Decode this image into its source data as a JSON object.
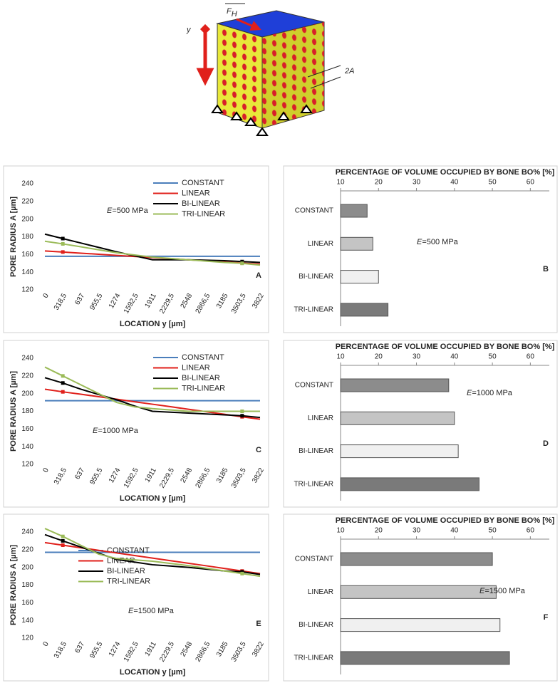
{
  "diagram": {
    "axis_label": "y",
    "force": {
      "symbol": "F",
      "subscript": "H"
    },
    "dimension": "2A"
  },
  "chart_data": [
    {
      "type": "line",
      "panel": "A",
      "annotation": {
        "symbol": "E",
        "text": "=500 MPa"
      },
      "xlabel": "LOCATION y [µm]",
      "ylabel": "PORE RADIUS A [µm]",
      "categories": [
        "0",
        "318,5",
        "637",
        "955,5",
        "1274",
        "1592,5",
        "1911",
        "2229,5",
        "2548",
        "2866,5",
        "3185",
        "3503,5",
        "3822"
      ],
      "ylim": [
        120,
        240
      ],
      "yticks": [
        120,
        140,
        160,
        180,
        200,
        220,
        240
      ],
      "legend": "upper right",
      "series": [
        {
          "name": "CONSTANT",
          "color": "#4a7ebb",
          "values": [
            158,
            158,
            158,
            158,
            158,
            158,
            158,
            158,
            158,
            158,
            158,
            158,
            158
          ]
        },
        {
          "name": "LINEAR",
          "color": "#e0201b",
          "values": [
            164,
            162.8,
            161.5,
            160.3,
            159,
            157.8,
            156.5,
            155.3,
            154,
            152.8,
            151.5,
            150.3,
            149
          ]
        },
        {
          "name": "BI-LINEAR",
          "color": "#000000",
          "values": [
            183,
            178,
            173,
            168,
            163,
            158.5,
            154,
            154,
            154,
            153.5,
            153,
            152,
            151
          ]
        },
        {
          "name": "TRI-LINEAR",
          "color": "#9bbb59",
          "values": [
            175,
            172,
            168.7,
            165.3,
            162,
            159.5,
            157,
            155.5,
            154,
            152.5,
            151,
            150,
            148
          ]
        }
      ]
    },
    {
      "type": "hbar",
      "panel": "B",
      "annotation": {
        "symbol": "E",
        "text": "=500 MPa"
      },
      "title": "PERCENTAGE OF VOLUME OCCUPIED BY BONE BO% [%]",
      "categories": [
        "CONSTANT",
        "LINEAR",
        "BI-LINEAR",
        "TRI-LINEAR"
      ],
      "values": [
        17,
        18.5,
        20,
        22.5
      ],
      "colors": [
        "#8c8c8c",
        "#c4c4c4",
        "#f0f0f0",
        "#7a7a7a"
      ],
      "xlim": [
        10,
        65
      ],
      "xticks": [
        10,
        20,
        30,
        40,
        50,
        60
      ]
    },
    {
      "type": "line",
      "panel": "C",
      "annotation": {
        "symbol": "E",
        "text": "=1000 MPa"
      },
      "xlabel": "LOCATION y [µm]",
      "ylabel": "PORE RADIUS A [µm]",
      "categories": [
        "0",
        "318,5",
        "637",
        "955,5",
        "1274",
        "1592,5",
        "1911",
        "2229,5",
        "2548",
        "2866,5",
        "3185",
        "3503,5",
        "3822"
      ],
      "ylim": [
        120,
        240
      ],
      "yticks": [
        120,
        140,
        160,
        180,
        200,
        220,
        240
      ],
      "legend": "upper right",
      "series": [
        {
          "name": "CONSTANT",
          "color": "#4a7ebb",
          "values": [
            192,
            192,
            192,
            192,
            192,
            192,
            192,
            192,
            192,
            192,
            192,
            192,
            192
          ]
        },
        {
          "name": "LINEAR",
          "color": "#e0201b",
          "values": [
            205,
            202,
            199.3,
            196.5,
            193.7,
            190.8,
            188,
            185.2,
            182.3,
            179.5,
            176.7,
            173.8,
            171
          ]
        },
        {
          "name": "BI-LINEAR",
          "color": "#000000",
          "values": [
            218,
            212,
            205,
            199,
            193,
            186,
            180,
            179,
            178,
            177,
            176,
            175,
            173
          ]
        },
        {
          "name": "TRI-LINEAR",
          "color": "#9bbb59",
          "values": [
            230,
            220,
            210,
            200,
            190,
            185,
            183,
            181.5,
            180,
            180,
            180,
            180,
            180
          ]
        }
      ]
    },
    {
      "type": "hbar",
      "panel": "D",
      "annotation": {
        "symbol": "E",
        "text": "=1000 MPa"
      },
      "title": "PERCENTAGE OF VOLUME OCCUPIED BY BONE BO% [%]",
      "categories": [
        "CONSTANT",
        "LINEAR",
        "BI-LINEAR",
        "TRI-LINEAR"
      ],
      "values": [
        38.5,
        40,
        41,
        46.5
      ],
      "colors": [
        "#8c8c8c",
        "#c4c4c4",
        "#f0f0f0",
        "#7a7a7a"
      ],
      "xlim": [
        10,
        65
      ],
      "xticks": [
        10,
        20,
        30,
        40,
        50,
        60
      ]
    },
    {
      "type": "line",
      "panel": "E",
      "annotation": {
        "symbol": "E",
        "text": "=1500 MPa"
      },
      "xlabel": "LOCATION y [µm]",
      "ylabel": "PORE RADIUS A [µm]",
      "categories": [
        "0",
        "318,5",
        "637",
        "955,5",
        "1274",
        "1592,5",
        "1911",
        "2229,5",
        "2548",
        "2866,5",
        "3185",
        "3503,5",
        "3822"
      ],
      "ylim": [
        120,
        240
      ],
      "yticks": [
        120,
        140,
        160,
        180,
        200,
        220,
        240
      ],
      "legend": "lower left",
      "series": [
        {
          "name": "CONSTANT",
          "color": "#4a7ebb",
          "values": [
            217,
            217,
            217,
            217,
            217,
            217,
            217,
            217,
            217,
            217,
            217,
            217,
            217
          ]
        },
        {
          "name": "LINEAR",
          "color": "#e0201b",
          "values": [
            228,
            225.1,
            222.2,
            219.3,
            216.3,
            213.4,
            210.5,
            207.6,
            204.7,
            201.8,
            198.8,
            195.9,
            193
          ]
        },
        {
          "name": "BI-LINEAR",
          "color": "#000000",
          "values": [
            237,
            230,
            223,
            216,
            209,
            206,
            203,
            201.5,
            200,
            198,
            196,
            195,
            192
          ]
        },
        {
          "name": "TRI-LINEAR",
          "color": "#9bbb59",
          "values": [
            244,
            235,
            225,
            215,
            210,
            208.5,
            207,
            204.5,
            202,
            199,
            196,
            193,
            190
          ]
        }
      ]
    },
    {
      "type": "hbar",
      "panel": "F",
      "annotation": {
        "symbol": "E",
        "text": "=1500 MPa"
      },
      "title": "PERCENTAGE OF VOLUME OCCUPIED BY BONE BO% [%]",
      "categories": [
        "CONSTANT",
        "LINEAR",
        "BI-LINEAR",
        "TRI-LINEAR"
      ],
      "values": [
        50,
        51,
        52,
        54.5
      ],
      "colors": [
        "#8c8c8c",
        "#c4c4c4",
        "#f0f0f0",
        "#7a7a7a"
      ],
      "xlim": [
        10,
        65
      ],
      "xticks": [
        10,
        20,
        30,
        40,
        50,
        60
      ]
    }
  ]
}
